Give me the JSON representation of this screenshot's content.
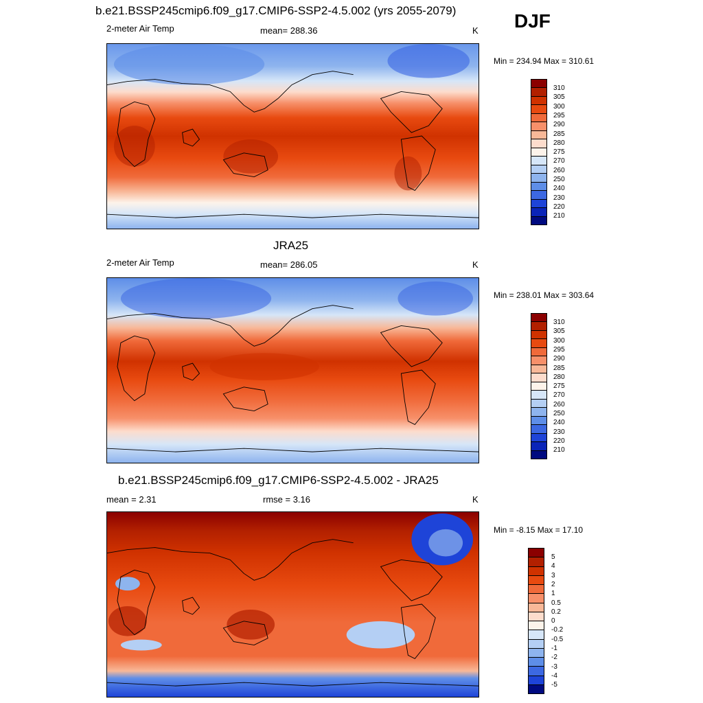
{
  "season": "DJF",
  "panels": [
    {
      "title": "b.e21.BSSP245cmip6.f09_g17.CMIP6-SSP2-4.5.002 (yrs 2055-2079)",
      "left_label": "2-meter Air Temp",
      "center_label": "mean= 288.36",
      "unit": "K",
      "minmax": "Min = 234.94 Max = 310.61"
    },
    {
      "title": "JRA25",
      "left_label": "2-meter Air Temp",
      "center_label": "mean= 286.05",
      "unit": "K",
      "minmax": "Min = 238.01 Max = 303.64"
    },
    {
      "title": "b.e21.BSSP245cmip6.f09_g17.CMIP6-SSP2-4.5.002 - JRA25",
      "left_label": "mean =   2.31",
      "center_label": "rmse =   3.16",
      "unit": "K",
      "minmax": "Min =  -8.15 Max =  17.10"
    }
  ],
  "colorbars": {
    "temperature": {
      "labels": [
        "310",
        "305",
        "300",
        "295",
        "290",
        "285",
        "280",
        "275",
        "270",
        "260",
        "250",
        "240",
        "230",
        "220",
        "210"
      ],
      "colors": [
        "#8b0000",
        "#b22000",
        "#d03200",
        "#e84a10",
        "#f06a3a",
        "#f7906a",
        "#f8b898",
        "#fddccc",
        "#fdf3ea",
        "#d6e6f8",
        "#b4cff4",
        "#8eb4ee",
        "#5e8ee8",
        "#3c68e2",
        "#1e44d8",
        "#0a24b8",
        "#000a80"
      ]
    },
    "difference": {
      "labels": [
        "5",
        "4",
        "3",
        "2",
        "1",
        "0.5",
        "0.2",
        "0",
        "-0.2",
        "-0.5",
        "-1",
        "-2",
        "-3",
        "-4",
        "-5"
      ],
      "colors": [
        "#8b0000",
        "#b22000",
        "#d03200",
        "#e84a10",
        "#f06a3a",
        "#f7906a",
        "#f8b898",
        "#fddccc",
        "#fdf3ea",
        "#d6e6f8",
        "#b4cff4",
        "#8eb4ee",
        "#5e8ee8",
        "#3c68e2",
        "#1e44d8",
        "#000a80"
      ]
    }
  }
}
